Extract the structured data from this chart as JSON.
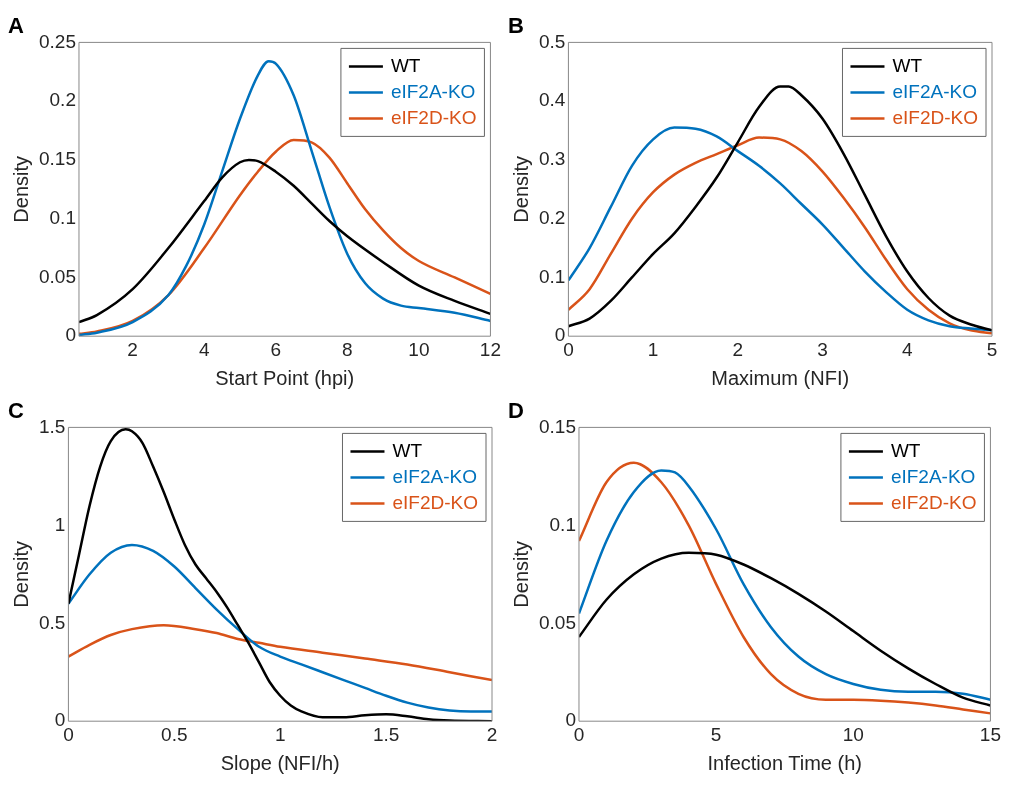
{
  "chart_data": [
    {
      "type": "line",
      "title": "A",
      "xlabel": "Start Point (hpi)",
      "ylabel": "Density",
      "xlim": [
        0.5,
        12
      ],
      "xticks": [
        2,
        4,
        6,
        8,
        10,
        12
      ],
      "ylim": [
        0,
        0.25
      ],
      "yticks": [
        0,
        0.05,
        0.1,
        0.15,
        0.2,
        0.25
      ],
      "grid": false,
      "legend": "top right",
      "series": [
        {
          "name": "WT",
          "color": "#000000",
          "x": [
            0.5,
            1,
            2,
            3,
            4,
            4.5,
            5,
            5.25,
            5.5,
            6,
            6.5,
            7,
            7.5,
            8,
            9,
            10,
            11,
            12
          ],
          "values": [
            0.012,
            0.018,
            0.04,
            0.075,
            0.115,
            0.135,
            0.148,
            0.15,
            0.149,
            0.14,
            0.128,
            0.113,
            0.098,
            0.085,
            0.063,
            0.043,
            0.03,
            0.019
          ]
        },
        {
          "name": "eIF2A-KO",
          "color": "#0072bd",
          "x": [
            0.5,
            1,
            2,
            3,
            3.5,
            4,
            4.5,
            5,
            5.5,
            5.8,
            6,
            6.5,
            7,
            7.5,
            8,
            8.5,
            9,
            9.5,
            10,
            11,
            12
          ],
          "values": [
            0.001,
            0.003,
            0.012,
            0.035,
            0.06,
            0.095,
            0.14,
            0.185,
            0.222,
            0.234,
            0.232,
            0.205,
            0.158,
            0.11,
            0.07,
            0.045,
            0.032,
            0.026,
            0.024,
            0.02,
            0.013
          ]
        },
        {
          "name": "eIF2D-KO",
          "color": "#d95319",
          "x": [
            0.5,
            1,
            2,
            3,
            4,
            5,
            5.5,
            6,
            6.5,
            7,
            7.5,
            8,
            8.5,
            9,
            9.5,
            10,
            11,
            12
          ],
          "values": [
            0.002,
            0.004,
            0.013,
            0.035,
            0.075,
            0.12,
            0.14,
            0.157,
            0.167,
            0.165,
            0.152,
            0.13,
            0.108,
            0.09,
            0.075,
            0.064,
            0.05,
            0.036
          ]
        }
      ]
    },
    {
      "type": "line",
      "title": "B",
      "xlabel": "Maximum (NFI)",
      "ylabel": "Density",
      "xlim": [
        0,
        5
      ],
      "xticks": [
        0,
        1,
        2,
        3,
        4,
        5
      ],
      "ylim": [
        0,
        0.5
      ],
      "yticks": [
        0,
        0.1,
        0.2,
        0.3,
        0.4,
        0.5
      ],
      "grid": false,
      "legend": "top right",
      "series": [
        {
          "name": "WT",
          "color": "#000000",
          "x": [
            0,
            0.25,
            0.5,
            0.75,
            1,
            1.25,
            1.5,
            1.75,
            2,
            2.25,
            2.5,
            2.6,
            2.75,
            3,
            3.25,
            3.5,
            3.75,
            4,
            4.25,
            4.5,
            4.75,
            5
          ],
          "values": [
            0.017,
            0.03,
            0.06,
            0.1,
            0.14,
            0.175,
            0.22,
            0.27,
            0.33,
            0.39,
            0.425,
            0.425,
            0.41,
            0.37,
            0.31,
            0.24,
            0.17,
            0.11,
            0.065,
            0.035,
            0.02,
            0.01
          ]
        },
        {
          "name": "eIF2A-KO",
          "color": "#0072bd",
          "x": [
            0,
            0.25,
            0.5,
            0.75,
            1,
            1.25,
            1.5,
            1.75,
            2,
            2.25,
            2.5,
            2.75,
            3,
            3.25,
            3.5,
            3.75,
            4,
            4.25,
            4.5,
            4.75,
            5
          ],
          "values": [
            0.095,
            0.15,
            0.22,
            0.29,
            0.335,
            0.355,
            0.353,
            0.34,
            0.315,
            0.29,
            0.26,
            0.225,
            0.19,
            0.15,
            0.11,
            0.075,
            0.045,
            0.027,
            0.017,
            0.013,
            0.01
          ]
        },
        {
          "name": "eIF2D-KO",
          "color": "#d95319",
          "x": [
            0,
            0.25,
            0.5,
            0.75,
            1,
            1.25,
            1.5,
            1.75,
            2,
            2.25,
            2.5,
            2.75,
            3,
            3.25,
            3.5,
            3.75,
            4,
            4.25,
            4.5,
            4.75,
            5
          ],
          "values": [
            0.045,
            0.08,
            0.14,
            0.2,
            0.245,
            0.275,
            0.295,
            0.31,
            0.325,
            0.338,
            0.335,
            0.315,
            0.28,
            0.235,
            0.185,
            0.13,
            0.08,
            0.045,
            0.022,
            0.01,
            0.005
          ]
        }
      ]
    },
    {
      "type": "line",
      "title": "C",
      "xlabel": "Slope (NFI/h)",
      "ylabel": "Density",
      "xlim": [
        0,
        2
      ],
      "xticks": [
        0,
        0.5,
        1,
        1.5,
        2
      ],
      "ylim": [
        0,
        1.5
      ],
      "yticks": [
        0,
        0.5,
        1,
        1.5
      ],
      "grid": false,
      "legend": "top right",
      "series": [
        {
          "name": "WT",
          "color": "#000000",
          "x": [
            0,
            0.05,
            0.1,
            0.15,
            0.2,
            0.27,
            0.3,
            0.35,
            0.4,
            0.45,
            0.5,
            0.55,
            0.6,
            0.65,
            0.7,
            0.75,
            0.8,
            0.85,
            0.9,
            0.95,
            1,
            1.05,
            1.1,
            1.2,
            1.3,
            1.4,
            1.5,
            1.6,
            1.7,
            1.8,
            2
          ],
          "values": [
            0.6,
            0.85,
            1.1,
            1.3,
            1.43,
            1.49,
            1.48,
            1.42,
            1.3,
            1.17,
            1.03,
            0.9,
            0.8,
            0.73,
            0.66,
            0.58,
            0.49,
            0.4,
            0.3,
            0.2,
            0.13,
            0.08,
            0.05,
            0.02,
            0.02,
            0.03,
            0.035,
            0.025,
            0.01,
            0.003,
            0
          ]
        },
        {
          "name": "eIF2A-KO",
          "color": "#0072bd",
          "x": [
            0,
            0.1,
            0.2,
            0.3,
            0.4,
            0.5,
            0.6,
            0.7,
            0.8,
            0.9,
            1,
            1.1,
            1.2,
            1.3,
            1.4,
            1.5,
            1.6,
            1.7,
            1.8,
            1.9,
            2
          ],
          "values": [
            0.6,
            0.75,
            0.86,
            0.9,
            0.87,
            0.79,
            0.68,
            0.57,
            0.47,
            0.38,
            0.33,
            0.29,
            0.25,
            0.21,
            0.17,
            0.13,
            0.095,
            0.07,
            0.055,
            0.05,
            0.05
          ]
        },
        {
          "name": "eIF2D-KO",
          "color": "#d95319",
          "x": [
            0,
            0.1,
            0.2,
            0.3,
            0.45,
            0.6,
            0.7,
            0.8,
            0.9,
            1,
            1.2,
            1.4,
            1.6,
            1.8,
            2
          ],
          "values": [
            0.33,
            0.39,
            0.44,
            0.47,
            0.49,
            0.47,
            0.45,
            0.42,
            0.4,
            0.38,
            0.35,
            0.32,
            0.29,
            0.25,
            0.21
          ]
        }
      ]
    },
    {
      "type": "line",
      "title": "D",
      "xlabel": "Infection Time (h)",
      "ylabel": "Density",
      "xlim": [
        0,
        15
      ],
      "xticks": [
        0,
        5,
        10,
        15
      ],
      "ylim": [
        0,
        0.15
      ],
      "yticks": [
        0,
        0.05,
        0.1,
        0.15
      ],
      "grid": false,
      "legend": "top right",
      "series": [
        {
          "name": "WT",
          "color": "#000000",
          "x": [
            0,
            1,
            2,
            3,
            4,
            5,
            6,
            7,
            8,
            9,
            10,
            11,
            12,
            13,
            14,
            15
          ],
          "values": [
            0.043,
            0.062,
            0.075,
            0.083,
            0.086,
            0.085,
            0.08,
            0.073,
            0.065,
            0.056,
            0.046,
            0.036,
            0.027,
            0.019,
            0.012,
            0.008
          ]
        },
        {
          "name": "eIF2A-KO",
          "color": "#0072bd",
          "x": [
            0,
            1,
            2,
            3,
            3.5,
            4,
            5,
            6,
            7,
            8,
            9,
            10,
            11,
            12,
            13,
            14,
            15
          ],
          "values": [
            0.055,
            0.092,
            0.117,
            0.128,
            0.127,
            0.12,
            0.098,
            0.07,
            0.048,
            0.033,
            0.024,
            0.019,
            0.016,
            0.015,
            0.015,
            0.014,
            0.011
          ]
        },
        {
          "name": "eIF2D-KO",
          "color": "#d95319",
          "x": [
            0,
            1,
            2,
            3,
            4,
            5,
            6,
            7,
            8,
            9,
            10,
            11,
            12,
            13,
            14,
            15
          ],
          "values": [
            0.092,
            0.122,
            0.132,
            0.122,
            0.1,
            0.07,
            0.043,
            0.024,
            0.014,
            0.011,
            0.011,
            0.0105,
            0.0095,
            0.008,
            0.006,
            0.004
          ]
        }
      ]
    }
  ]
}
